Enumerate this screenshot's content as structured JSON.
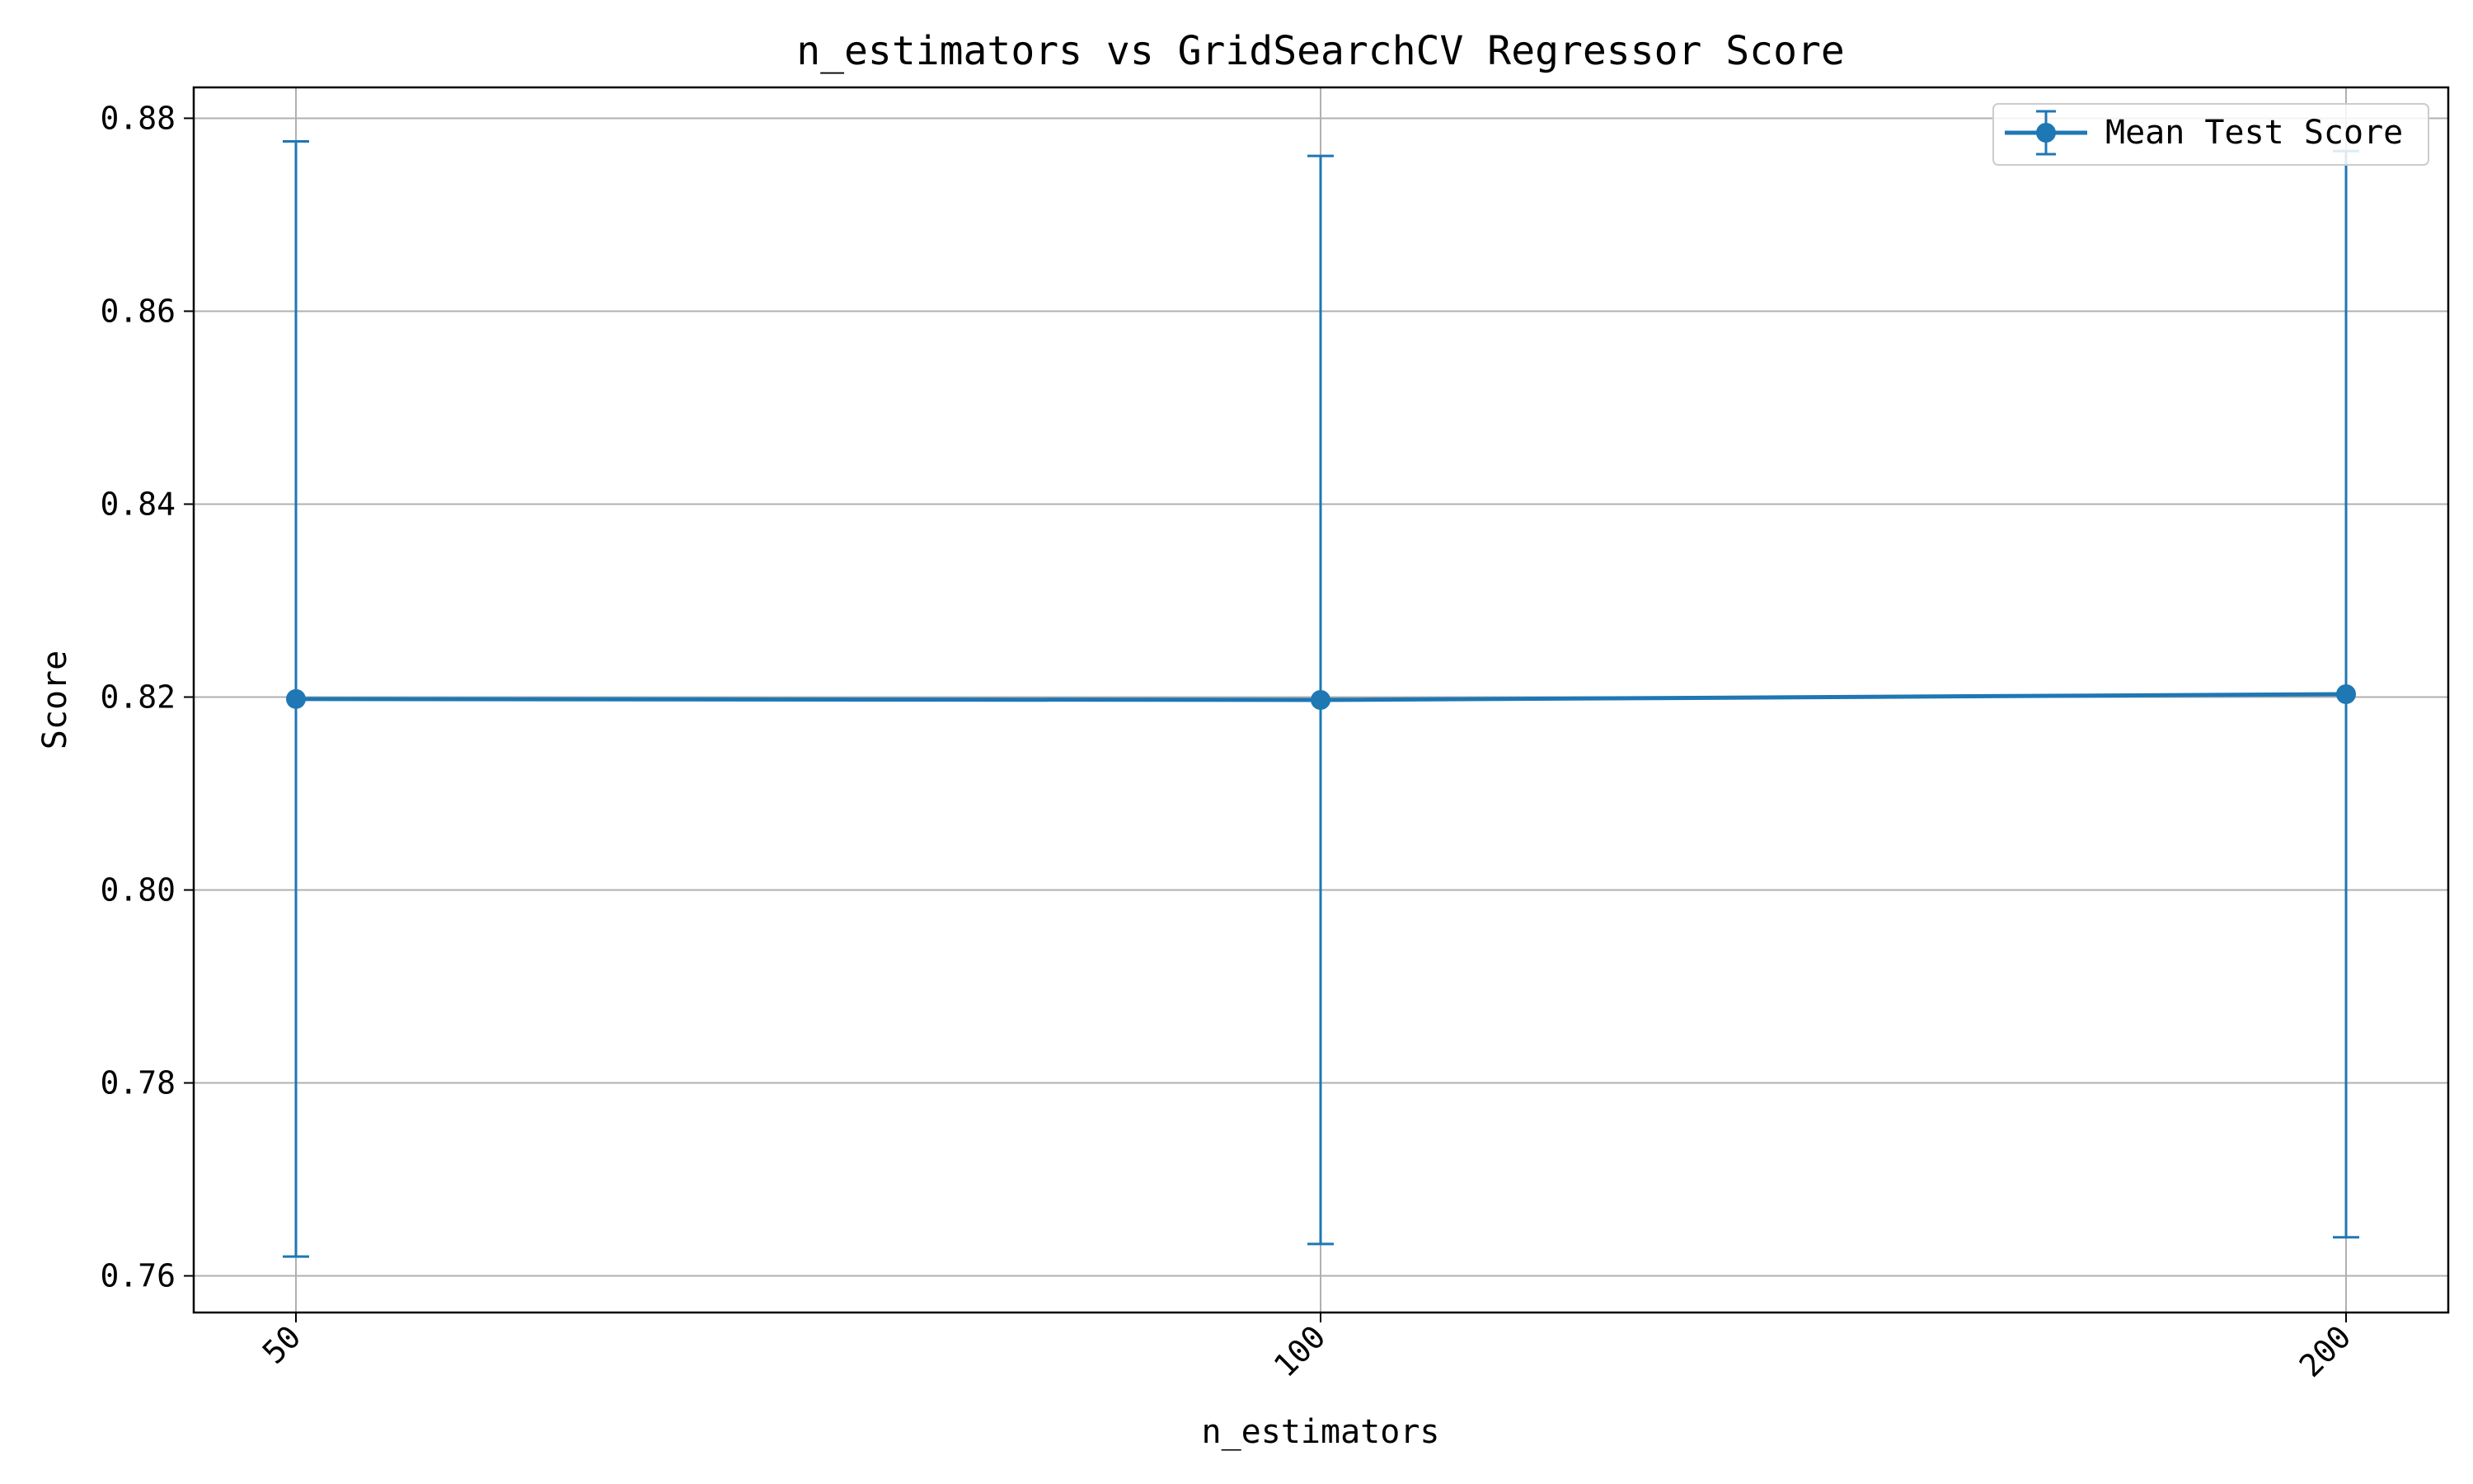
{
  "chart_data": {
    "type": "line",
    "title": "n_estimators vs GridSearchCV Regressor Score",
    "xlabel": "n_estimators",
    "ylabel": "Score",
    "categories": [
      "50",
      "100",
      "200"
    ],
    "ylim": [
      0.7562,
      0.8832
    ],
    "yticks": [
      "0.76",
      "0.78",
      "0.80",
      "0.82",
      "0.84",
      "0.86",
      "0.88"
    ],
    "grid": true,
    "legend_position": "top-right",
    "color": "#1f77b4",
    "series": [
      {
        "name": "Mean Test Score",
        "values": [
          0.8198,
          0.8197,
          0.8203
        ],
        "error": [
          0.0578,
          0.0564,
          0.0563
        ]
      }
    ]
  }
}
